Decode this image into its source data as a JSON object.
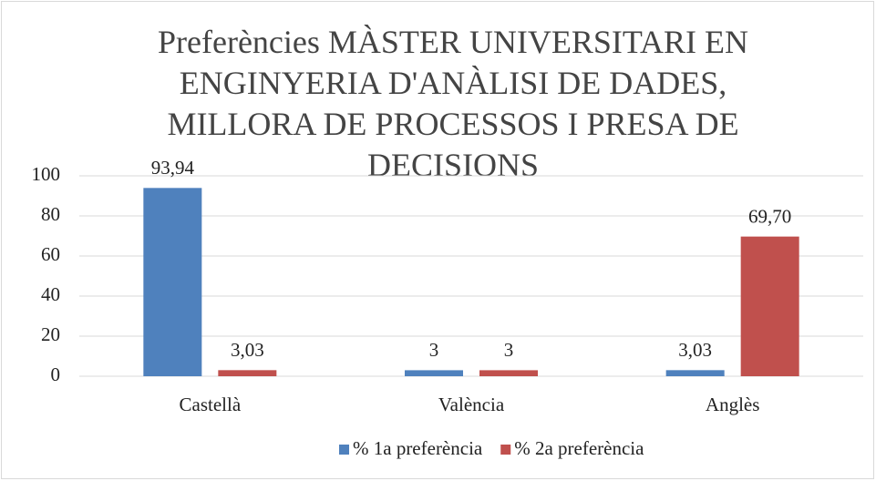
{
  "chart_data": {
    "type": "bar",
    "title": "Preferències MÀSTER UNIVERSITARI EN ENGINYERIA D'ANÀLISI DE DADES, MILLORA DE PROCESSOS I PRESA DE DECISIONS",
    "categories": [
      "Castellà",
      "València",
      "Anglès"
    ],
    "series": [
      {
        "name": "% 1a preferència",
        "color": "#4f81bd",
        "values": [
          93.94,
          3,
          3.03
        ],
        "value_labels": [
          "93,94",
          "3",
          "3,03"
        ]
      },
      {
        "name": "% 2a preferència",
        "color": "#c0504d",
        "values": [
          3.03,
          3,
          69.7
        ],
        "value_labels": [
          "3,03",
          "3",
          "69,70"
        ]
      }
    ],
    "ylim": [
      0,
      100
    ],
    "yticks": [
      0,
      20,
      40,
      60,
      80,
      100
    ],
    "grid": true,
    "legend": "bottom"
  }
}
